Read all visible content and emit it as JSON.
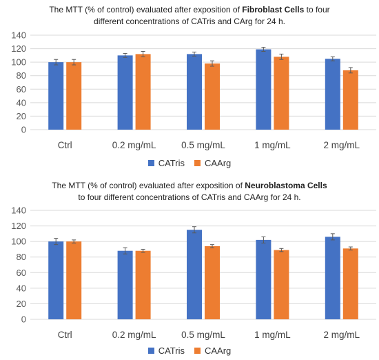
{
  "colors": {
    "CATris": "#4472C4",
    "CAArg": "#ED7D31",
    "grid": "#d9d9d9",
    "axis": "#595959",
    "errorbar": "#595959"
  },
  "chart_data": [
    {
      "type": "bar",
      "title_parts": [
        "The MTT (% of control) evaluated after exposition of ",
        "Fibroblast Cells",
        " to four",
        "different concentrations of CATris and CArg for 24 h."
      ],
      "xlabel": "",
      "ylabel": "",
      "ylim": [
        0,
        140
      ],
      "yticks": [
        "0",
        "20",
        "40",
        "60",
        "80",
        "100",
        "120",
        "140"
      ],
      "grid": true,
      "legend_position": "bottom",
      "categories": [
        "Ctrl",
        "0.2 mg/mL",
        "0.5 mg/mL",
        "1 mg/mL",
        "2 mg/mL"
      ],
      "series": [
        {
          "name": "CATris",
          "values": [
            100,
            110,
            112,
            119,
            105
          ],
          "errors": [
            4,
            3,
            3,
            3,
            3
          ]
        },
        {
          "name": "CAArg",
          "values": [
            100,
            112,
            98,
            108,
            88
          ],
          "errors": [
            4,
            4,
            4,
            4,
            4
          ]
        }
      ]
    },
    {
      "type": "bar",
      "title_parts": [
        "The MTT (% of control) evaluated after exposition of ",
        "Neuroblastoma Cells",
        "",
        "to four different concentrations of CATris and CAArg for 24 h."
      ],
      "xlabel": "",
      "ylabel": "",
      "ylim": [
        0,
        140
      ],
      "yticks": [
        "0",
        "20",
        "40",
        "60",
        "80",
        "100",
        "120",
        "140"
      ],
      "grid": true,
      "legend_position": "bottom",
      "categories": [
        "Ctrl",
        "0.2 mg/mL",
        "0.5 mg/mL",
        "1 mg/mL",
        "2 mg/mL"
      ],
      "series": [
        {
          "name": "CATris",
          "values": [
            100,
            88,
            115,
            102,
            106
          ],
          "errors": [
            4,
            4,
            4,
            4,
            4
          ]
        },
        {
          "name": "CAArg",
          "values": [
            100,
            88,
            94,
            89,
            91
          ],
          "errors": [
            2,
            2,
            2,
            2,
            2
          ]
        }
      ]
    }
  ]
}
